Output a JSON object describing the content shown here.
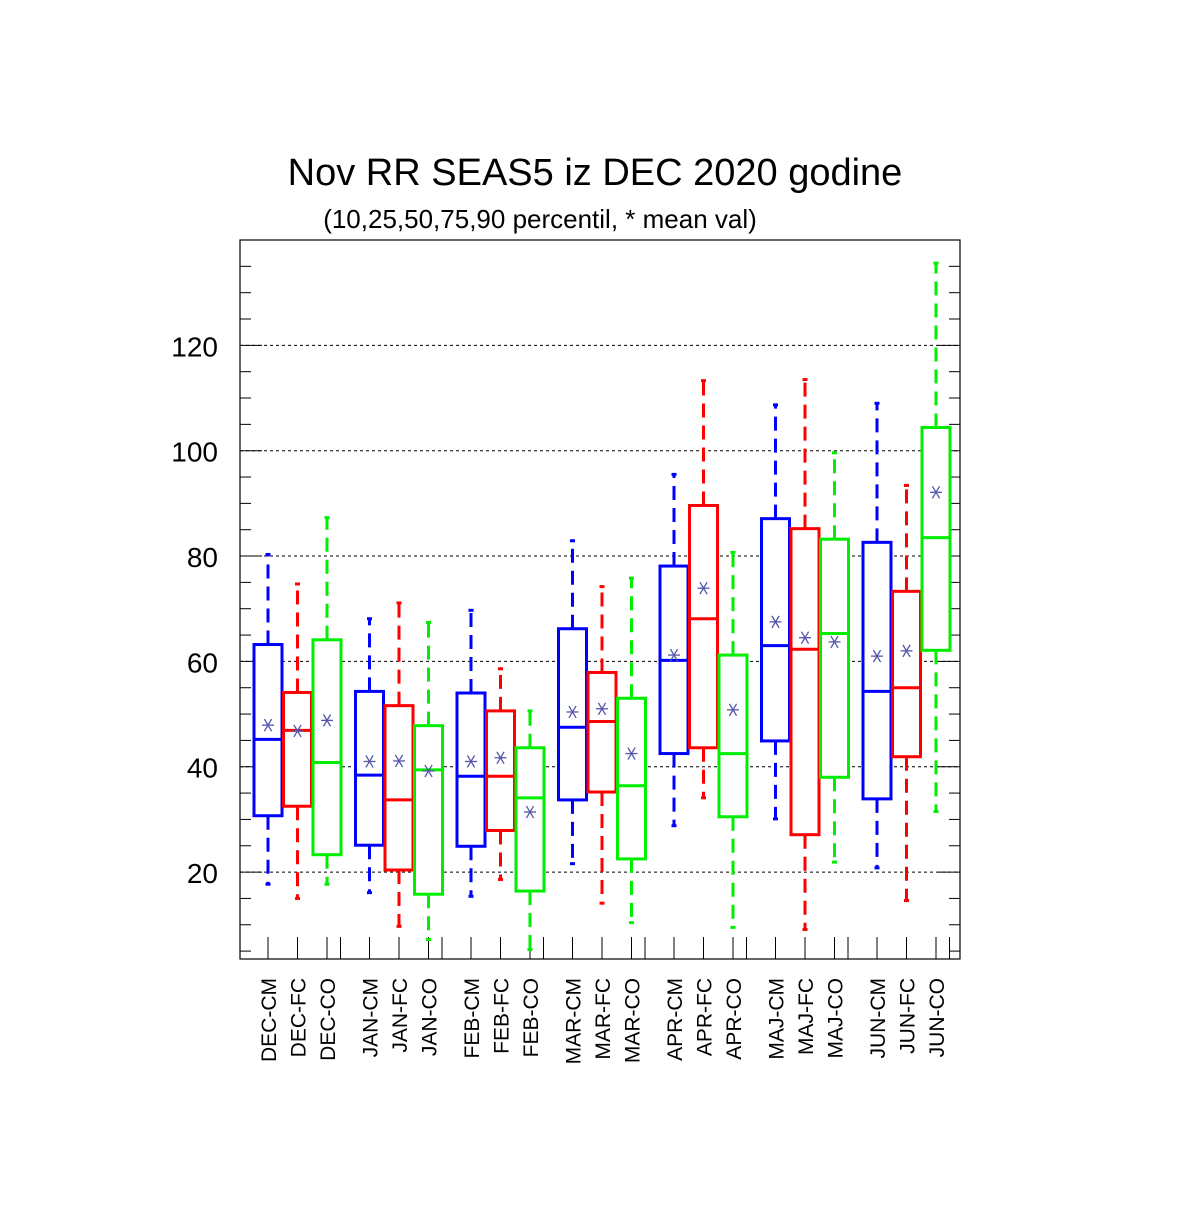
{
  "chart_data": {
    "type": "boxplot",
    "title": "Nov RR SEAS5 iz DEC 2020 godine",
    "subtitle": "(10,25,50,75,90 percentil, * mean val)",
    "xlabel": "",
    "ylabel": "",
    "ylim": [
      3.5,
      140
    ],
    "yticks": [
      20,
      40,
      60,
      80,
      100,
      120
    ],
    "grid": true,
    "colors": {
      "CM": "#0000ff",
      "FC": "#ff0000",
      "CO": "#00ee00",
      "mean_marker": "#5555aa"
    },
    "boxes": [
      {
        "label": "DEC-CM",
        "group": "CM",
        "p10": 17.7,
        "p25": 30.7,
        "p50": 45.2,
        "p75": 63.2,
        "p90": 80.3,
        "mean": 47.9
      },
      {
        "label": "DEC-FC",
        "group": "FC",
        "p10": 15.0,
        "p25": 32.5,
        "p50": 46.9,
        "p75": 54.1,
        "p90": 74.7,
        "mean": 46.8
      },
      {
        "label": "DEC-CO",
        "group": "CO",
        "p10": 17.7,
        "p25": 23.3,
        "p50": 40.8,
        "p75": 64.1,
        "p90": 87.3,
        "mean": 48.8
      },
      {
        "label": "JAN-CM",
        "group": "CM",
        "p10": 16.1,
        "p25": 25.1,
        "p50": 38.4,
        "p75": 54.3,
        "p90": 68.1,
        "mean": 41.0
      },
      {
        "label": "JAN-FC",
        "group": "FC",
        "p10": 9.7,
        "p25": 20.4,
        "p50": 33.7,
        "p75": 51.6,
        "p90": 71.1,
        "mean": 41.1
      },
      {
        "label": "JAN-CO",
        "group": "CO",
        "p10": 7.2,
        "p25": 15.8,
        "p50": 39.4,
        "p75": 47.8,
        "p90": 67.4,
        "mean": 39.2
      },
      {
        "label": "FEB-CM",
        "group": "CM",
        "p10": 15.4,
        "p25": 24.9,
        "p50": 38.2,
        "p75": 54.0,
        "p90": 69.7,
        "mean": 41.0
      },
      {
        "label": "FEB-FC",
        "group": "FC",
        "p10": 18.6,
        "p25": 27.9,
        "p50": 38.2,
        "p75": 50.6,
        "p90": 58.6,
        "mean": 41.7
      },
      {
        "label": "FEB-CO",
        "group": "CO",
        "p10": 5.3,
        "p25": 16.4,
        "p50": 34.1,
        "p75": 43.6,
        "p90": 50.6,
        "mean": 31.4
      },
      {
        "label": "MAR-CM",
        "group": "CM",
        "p10": 21.6,
        "p25": 33.7,
        "p50": 47.5,
        "p75": 66.2,
        "p90": 82.9,
        "mean": 50.4
      },
      {
        "label": "MAR-FC",
        "group": "FC",
        "p10": 14.1,
        "p25": 35.2,
        "p50": 48.6,
        "p75": 57.9,
        "p90": 74.2,
        "mean": 51.0
      },
      {
        "label": "MAR-CO",
        "group": "CO",
        "p10": 10.4,
        "p25": 22.5,
        "p50": 36.4,
        "p75": 53.0,
        "p90": 75.8,
        "mean": 42.5
      },
      {
        "label": "APR-CM",
        "group": "CM",
        "p10": 28.8,
        "p25": 42.5,
        "p50": 60.2,
        "p75": 78.1,
        "p90": 95.5,
        "mean": 61.2
      },
      {
        "label": "APR-FC",
        "group": "FC",
        "p10": 34.1,
        "p25": 43.6,
        "p50": 68.1,
        "p75": 89.6,
        "p90": 113.3,
        "mean": 73.9
      },
      {
        "label": "APR-CO",
        "group": "CO",
        "p10": 9.5,
        "p25": 30.5,
        "p50": 42.5,
        "p75": 61.2,
        "p90": 80.7,
        "mean": 50.8
      },
      {
        "label": "MAJ-CM",
        "group": "CM",
        "p10": 30.1,
        "p25": 44.9,
        "p50": 63.0,
        "p75": 87.1,
        "p90": 108.7,
        "mean": 67.5
      },
      {
        "label": "MAJ-FC",
        "group": "FC",
        "p10": 9.1,
        "p25": 27.1,
        "p50": 62.3,
        "p75": 85.2,
        "p90": 113.5,
        "mean": 64.5
      },
      {
        "label": "MAJ-CO",
        "group": "CO",
        "p10": 21.9,
        "p25": 38.0,
        "p50": 65.3,
        "p75": 83.2,
        "p90": 99.6,
        "mean": 63.7
      },
      {
        "label": "JUN-CM",
        "group": "CM",
        "p10": 20.8,
        "p25": 33.9,
        "p50": 54.3,
        "p75": 82.6,
        "p90": 109.0,
        "mean": 61.0
      },
      {
        "label": "JUN-FC",
        "group": "FC",
        "p10": 14.6,
        "p25": 41.9,
        "p50": 55.0,
        "p75": 73.3,
        "p90": 93.4,
        "mean": 62.0
      },
      {
        "label": "JUN-CO",
        "group": "CO",
        "p10": 31.5,
        "p25": 62.1,
        "p50": 83.5,
        "p75": 104.4,
        "p90": 135.6,
        "mean": 92.1
      }
    ]
  }
}
